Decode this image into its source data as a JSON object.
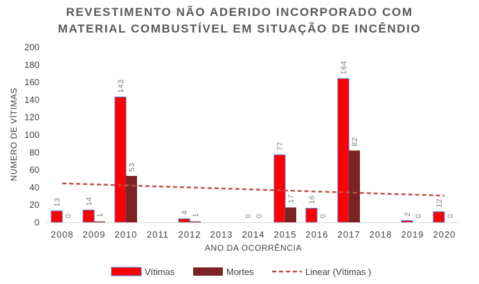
{
  "chart_data": {
    "type": "bar",
    "title_lines": [
      "REVESTIMENTO NÃO ADERIDO INCORPORADO COM",
      "MATERIAL COMBUSTÍVEL EM SITUAÇÃO DE INCÊNDIO"
    ],
    "xlabel": "ANO DA OCORRÊNCIA",
    "ylabel": "NÚMERO DE VÍTIMAS",
    "ylim": [
      0,
      200
    ],
    "yticks": [
      0,
      20,
      40,
      60,
      80,
      100,
      120,
      140,
      160,
      180,
      200
    ],
    "categories": [
      "2008",
      "2009",
      "2010",
      "2011",
      "2012",
      "2013",
      "2014",
      "2015",
      "2016",
      "2017",
      "2018",
      "2019",
      "2020"
    ],
    "series": [
      {
        "name": "Vítimas",
        "type": "bar",
        "color": "#ff0000",
        "border": "#4472c4",
        "values": [
          13,
          14,
          143,
          null,
          4,
          null,
          0,
          77,
          16,
          164,
          null,
          2,
          12
        ]
      },
      {
        "name": "Mortes",
        "type": "bar",
        "color": "#7b2223",
        "values": [
          0,
          1,
          53,
          null,
          1,
          null,
          0,
          17,
          0,
          82,
          null,
          0,
          0
        ]
      },
      {
        "name": "Linear (Vítimas )",
        "type": "trendline",
        "color": "#c0504d",
        "dash": "dashed",
        "start": 44.5,
        "end": 30.5
      }
    ],
    "grid": false,
    "legend_position": "bottom"
  }
}
